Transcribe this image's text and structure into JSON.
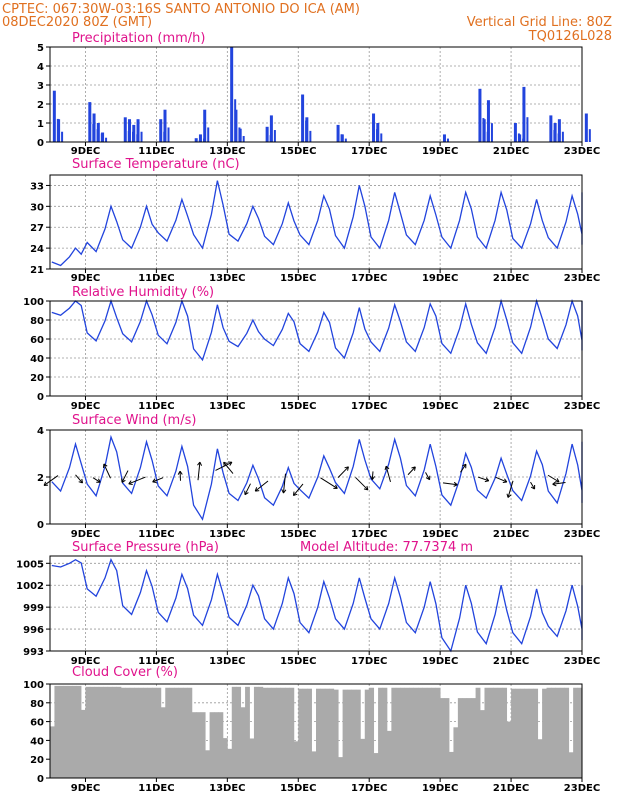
{
  "header": {
    "line1_left": "CPTEC:   067:30W-03:16S   SANTO ANTONIO DO ICA (AM)",
    "line2_left": "08DEC2020 80Z (GMT)",
    "line2_right": "Vertical Grid Line: 80Z",
    "line3_right": "TQ0126L028"
  },
  "colors": {
    "header": "#e07020",
    "panel_title": "#e0138c",
    "series": "#2244dd",
    "cloud": "#aaaaaa",
    "wind_arrow": "#000000"
  },
  "x_axis": {
    "labels": [
      "9DEC",
      "11DEC",
      "13DEC",
      "15DEC",
      "17DEC",
      "19DEC",
      "21DEC",
      "23DEC"
    ],
    "start": "08DEC",
    "end": "23DEC"
  },
  "chart_data": [
    {
      "type": "bar",
      "title": "Precipitation  (mm/h)",
      "ylim": [
        0,
        5
      ],
      "yticks": [
        "0",
        "1",
        "2",
        "3",
        "4",
        "5"
      ],
      "x": [
        "08DEC",
        "08DEC",
        "09DEC",
        "09DEC",
        "09DEC",
        "09DEC",
        "10DEC",
        "10DEC",
        "10DEC",
        "10DEC",
        "11DEC",
        "11DEC",
        "12DEC",
        "12DEC",
        "12DEC",
        "13DEC",
        "13DEC",
        "13DEC",
        "14DEC",
        "14DEC",
        "15DEC",
        "15DEC",
        "16DEC",
        "16DEC",
        "17DEC",
        "17DEC",
        "19DEC",
        "20DEC",
        "20DEC",
        "20DEC",
        "21DEC",
        "21DEC",
        "21DEC",
        "22DEC",
        "22DEC",
        "22DEC",
        "23DEC"
      ],
      "values": [
        2.7,
        1.2,
        2.1,
        1.5,
        1.0,
        0.5,
        1.3,
        1.2,
        0.9,
        1.2,
        1.2,
        1.7,
        0.2,
        0.4,
        1.7,
        5.0,
        1.7,
        0.7,
        0.8,
        1.4,
        2.5,
        1.3,
        0.9,
        0.4,
        1.5,
        1.0,
        0.4,
        2.8,
        1.2,
        2.2,
        1.0,
        0.4,
        2.9,
        1.4,
        1.0,
        1.2,
        1.5
      ]
    },
    {
      "type": "line",
      "title": "Surface Temperature (nC)",
      "ylim": [
        21,
        34.5
      ],
      "yticks": [
        "21",
        "24",
        "27",
        "30",
        "33"
      ],
      "x": [
        "08DEC",
        "09DEC",
        "10DEC",
        "11DEC",
        "12DEC",
        "13DEC",
        "14DEC",
        "15DEC",
        "16DEC",
        "17DEC",
        "18DEC",
        "19DEC",
        "20DEC",
        "21DEC",
        "22DEC",
        "23DEC"
      ],
      "series": [
        {
          "values_min": [
            21.5,
            23.5,
            24.0,
            25.0,
            24.0,
            25.0,
            24.5,
            24.5,
            24.0,
            24.0,
            24.5,
            24.0,
            24.0,
            24.0,
            24.0,
            24.5
          ],
          "values_max": [
            24.0,
            30.0,
            30.0,
            31.0,
            33.7,
            30.0,
            30.5,
            31.5,
            33.0,
            32.0,
            31.5,
            32.0,
            32.0,
            31.0,
            31.5,
            32.0
          ]
        }
      ]
    },
    {
      "type": "line",
      "title": "Relative Humidity (%)",
      "ylim": [
        0,
        100
      ],
      "yticks": [
        "0",
        "20",
        "40",
        "60",
        "80",
        "100"
      ],
      "x": [
        "08DEC",
        "09DEC",
        "10DEC",
        "11DEC",
        "12DEC",
        "13DEC",
        "14DEC",
        "15DEC",
        "16DEC",
        "17DEC",
        "18DEC",
        "19DEC",
        "20DEC",
        "21DEC",
        "22DEC",
        "23DEC"
      ],
      "series": [
        {
          "values_min": [
            85,
            58,
            57,
            55,
            38,
            52,
            53,
            47,
            40,
            47,
            47,
            45,
            45,
            45,
            50,
            48
          ],
          "values_max": [
            100,
            100,
            100,
            100,
            96,
            80,
            87,
            88,
            93,
            96,
            97,
            97,
            100,
            100,
            100,
            100
          ]
        }
      ]
    },
    {
      "type": "line",
      "title": "Surface Wind (m/s)",
      "ylim": [
        0,
        4
      ],
      "yticks": [
        "0",
        "2",
        "4"
      ],
      "x": [
        "08DEC",
        "09DEC",
        "10DEC",
        "11DEC",
        "12DEC",
        "13DEC",
        "14DEC",
        "15DEC",
        "16DEC",
        "17DEC",
        "18DEC",
        "19DEC",
        "20DEC",
        "21DEC",
        "22DEC",
        "23DEC"
      ],
      "series": [
        {
          "values_min": [
            1.4,
            1.2,
            1.3,
            1.2,
            0.2,
            1.0,
            0.8,
            1.1,
            1.3,
            1.5,
            1.2,
            0.8,
            1.1,
            1.0,
            0.9,
            0.9
          ],
          "values_max": [
            3.4,
            3.7,
            3.5,
            3.3,
            3.2,
            2.5,
            2.4,
            2.9,
            3.6,
            3.6,
            3.4,
            3.0,
            2.8,
            3.1,
            3.4,
            3.5
          ]
        }
      ]
    },
    {
      "type": "line",
      "title": "Surface Pressure (hPa)",
      "subtitle": "Model Altitude:  77.7374 m",
      "ylim": [
        993,
        1006
      ],
      "yticks": [
        "993",
        "996",
        "999",
        "1002",
        "1005"
      ],
      "x": [
        "08DEC",
        "09DEC",
        "10DEC",
        "11DEC",
        "12DEC",
        "13DEC",
        "14DEC",
        "15DEC",
        "16DEC",
        "17DEC",
        "18DEC",
        "19DEC",
        "20DEC",
        "21DEC",
        "22DEC",
        "23DEC"
      ],
      "series": [
        {
          "values_min": [
            1004.5,
            1000.5,
            998.0,
            997.0,
            996.5,
            996.5,
            996.0,
            995.5,
            996.0,
            996.0,
            995.5,
            993.0,
            994.0,
            994.0,
            995.0,
            994.5
          ],
          "values_max": [
            1005.5,
            1005.5,
            1004.0,
            1003.5,
            1003.5,
            1002.0,
            1003.0,
            1002.5,
            1003.0,
            1003.0,
            1002.5,
            1002.0,
            1002.0,
            1001.5,
            1002.0,
            1002.0
          ]
        }
      ]
    },
    {
      "type": "area",
      "title": "Cloud Cover (%)",
      "ylim": [
        0,
        100
      ],
      "yticks": [
        "0",
        "20",
        "40",
        "60",
        "80",
        "100"
      ],
      "x": [
        "08DEC",
        "09DEC",
        "10DEC",
        "11DEC",
        "12DEC",
        "13DEC",
        "14DEC",
        "15DEC",
        "16DEC",
        "17DEC",
        "18DEC",
        "19DEC",
        "20DEC",
        "21DEC",
        "22DEC",
        "23DEC"
      ],
      "values": [
        98,
        97,
        96,
        96,
        70,
        97,
        96,
        95,
        94,
        96,
        96,
        85,
        96,
        95,
        96,
        97
      ]
    }
  ]
}
